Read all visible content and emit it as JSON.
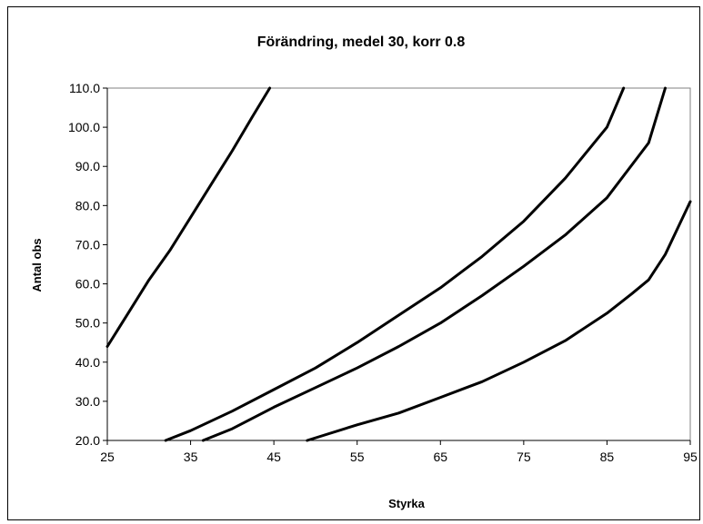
{
  "chart_data": {
    "type": "line",
    "title": "Förändring, medel 30, korr 0.8",
    "xlabel": "Styrka",
    "ylabel": "Antal obs",
    "xlim": [
      25,
      95
    ],
    "ylim": [
      20,
      110
    ],
    "xticks": [
      25,
      35,
      45,
      55,
      65,
      75,
      85,
      95
    ],
    "yticks": [
      "20.0",
      "30.0",
      "40.0",
      "50.0",
      "60.0",
      "70.0",
      "80.0",
      "90.0",
      "100.0",
      "110.0"
    ],
    "grid": false,
    "legend": "none",
    "line_color": "#000000",
    "series": [
      {
        "x": [
          25,
          27.5,
          30,
          32.5,
          35,
          37.5,
          40,
          42.5,
          44.5
        ],
        "y": [
          44,
          52.5,
          61,
          68.5,
          77,
          85.5,
          94,
          103,
          110
        ]
      },
      {
        "x": [
          32,
          35,
          40,
          45,
          50,
          55,
          60,
          65,
          70,
          75,
          80,
          85,
          87
        ],
        "y": [
          20,
          22.5,
          27.5,
          33,
          38.5,
          45,
          52,
          59,
          67,
          76,
          87,
          100,
          110
        ]
      },
      {
        "x": [
          36.5,
          40,
          45,
          50,
          55,
          60,
          65,
          70,
          75,
          80,
          85,
          90,
          92
        ],
        "y": [
          20,
          23,
          28.5,
          33.5,
          38.5,
          44,
          50,
          57,
          64.5,
          72.5,
          82,
          96,
          110
        ]
      },
      {
        "x": [
          49,
          55,
          60,
          65,
          70,
          75,
          80,
          85,
          88,
          90,
          92,
          95
        ],
        "y": [
          20,
          24,
          27,
          31,
          35,
          40,
          45.5,
          52.5,
          57.5,
          61,
          67.5,
          81
        ]
      }
    ]
  }
}
